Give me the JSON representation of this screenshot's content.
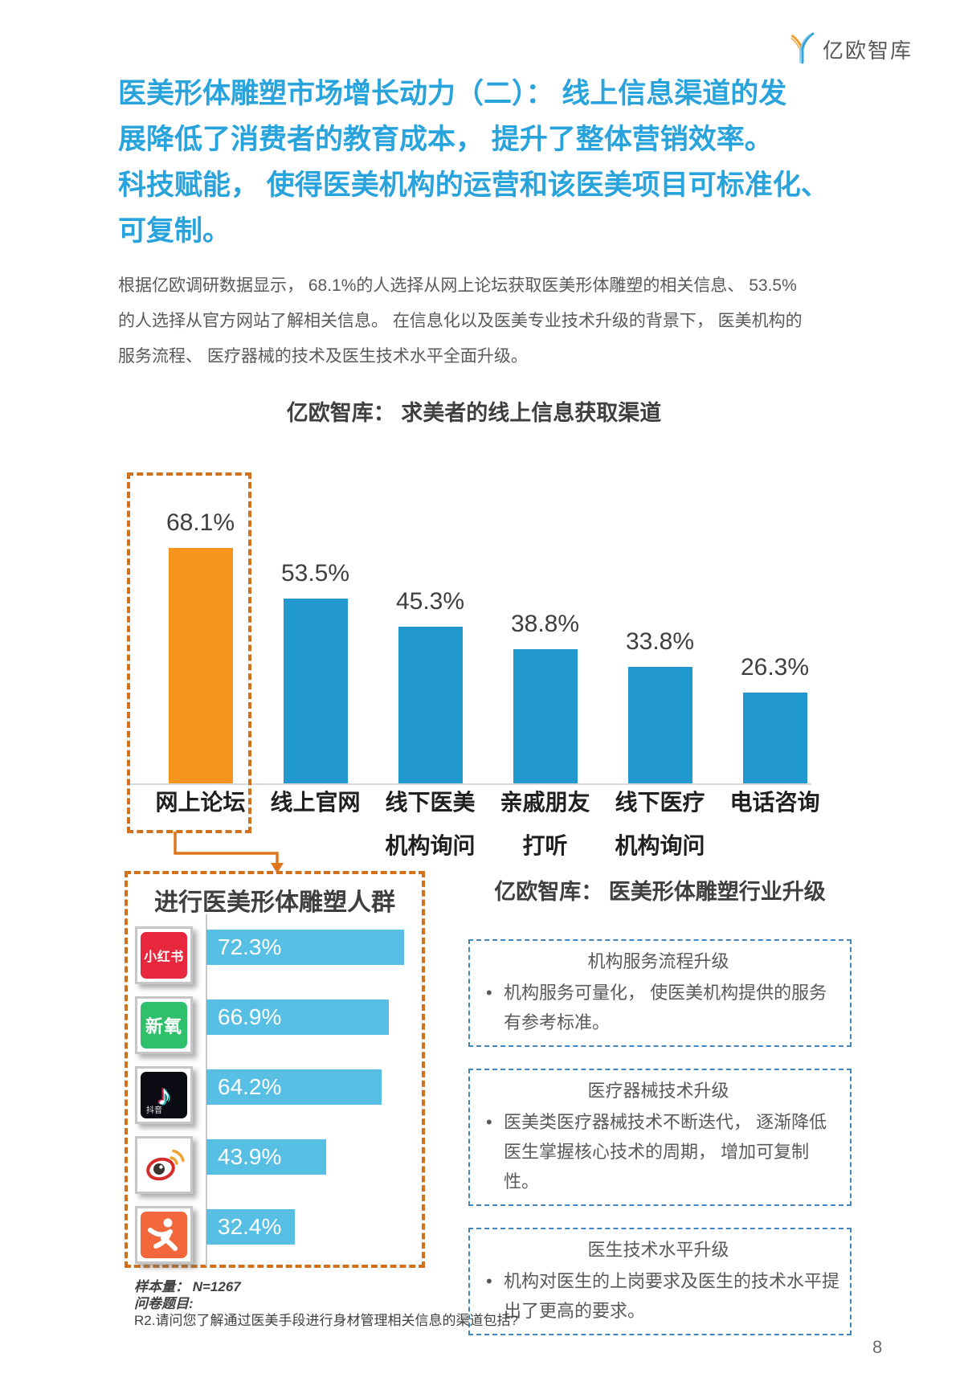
{
  "logo": {
    "text": "亿欧智库"
  },
  "heading": {
    "color": "#29A3DC",
    "lines": [
      "医美形体雕塑市场增长动力（二）： 线上信息渠道的发",
      "展降低了消费者的教育成本， 提升了整体营销效率。",
      "科技赋能， 使得医美机构的运营和该医美项目可标准化、",
      "可复制。"
    ]
  },
  "intro": {
    "lines": [
      "根据亿欧调研数据显示， 68.1%的人选择从网上论坛获取医美形体雕塑的相关信息、 53.5%",
      "的人选择从官方网站了解相关信息。 在信息化以及医美专业技术升级的背景下， 医美机构的",
      "服务流程、 医疗器械的技术及医生技术水平全面升级。"
    ]
  },
  "chart_data": [
    {
      "id": "online-info-channels",
      "type": "bar",
      "title": "亿欧智库： 求美者的线上信息获取渠道",
      "categories": [
        "网上论坛",
        "线上官网",
        "线下医美机构询问",
        "亲戚朋友打听",
        "线下医疗机构询问",
        "电话咨询"
      ],
      "category_lines": [
        [
          "网上论坛",
          ""
        ],
        [
          "线上官网",
          ""
        ],
        [
          "线下医美",
          "机构询问"
        ],
        [
          "亲戚朋友",
          "打听"
        ],
        [
          "线下医疗",
          "机构询问"
        ],
        [
          "电话咨询",
          ""
        ]
      ],
      "values": [
        68.1,
        53.5,
        45.3,
        38.8,
        33.8,
        26.3
      ],
      "value_labels": [
        "68.1%",
        "53.5%",
        "45.3%",
        "38.8%",
        "33.8%",
        "26.3%"
      ],
      "unit": "%",
      "ylim": [
        0,
        75
      ],
      "grid": false,
      "legend": "none",
      "bar_color": "#2199CE",
      "highlight_index": 0,
      "highlight_color": "#F7941E",
      "highlight_style": "dashed orange box around first bar with elbow arrow pointing to app panel below"
    },
    {
      "id": "body-sculpting-apps",
      "type": "bar",
      "orientation": "horizontal",
      "title": "进行医美形体雕塑人群",
      "categories": [
        "xiaohongshu-icon",
        "soyoung-icon",
        "douyin-icon",
        "weibo-icon",
        "sport-figure-icon"
      ],
      "icon_texts": [
        "小红书",
        "新氧",
        "抖音",
        "",
        ""
      ],
      "values": [
        72.3,
        66.9,
        64.2,
        43.9,
        32.4
      ],
      "value_labels": [
        "72.3%",
        "66.9%",
        "64.2%",
        "43.9%",
        "32.4%"
      ],
      "unit": "%",
      "grid": false,
      "legend": "none",
      "bar_color": "#58BFE4"
    }
  ],
  "industry_panel": {
    "title": "亿欧智库： 医美形体雕塑行业升级",
    "border_color": "#4285BF",
    "boxes": [
      {
        "title": "机构服务流程升级",
        "bullets": [
          "机构服务可量化， 使医美机构提供的服务有参考标准。"
        ]
      },
      {
        "title": "医疗器械技术升级",
        "bullets": [
          "医美类医疗器械技术不断迭代， 逐渐降低医生掌握核心技术的周期， 增加可复制性。"
        ]
      },
      {
        "title": "医生技术水平升级",
        "bullets": [
          "机构对医生的上岗要求及医生的技术水平提出了更高的要求。"
        ]
      }
    ]
  },
  "footnote": {
    "sample_size": "样本量： N=1267",
    "questionnaire_label": "问卷题目:",
    "question": "R2.请问您了解通过医美手段进行身材管理相关信息的渠道包括?"
  },
  "page": {
    "number": "8"
  }
}
